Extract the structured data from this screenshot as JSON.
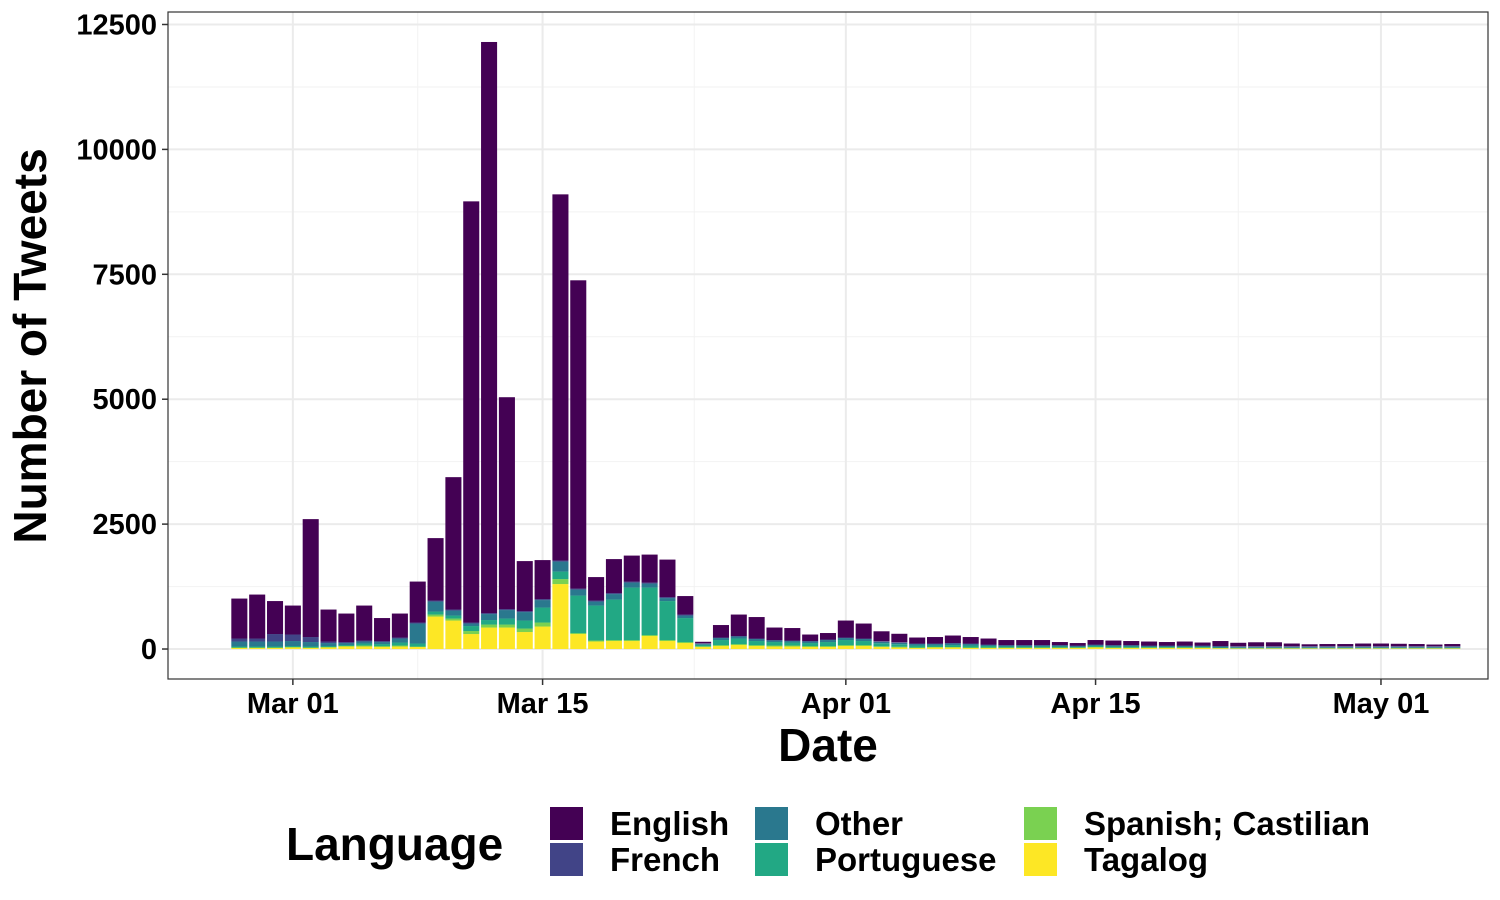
{
  "chart_data": {
    "type": "bar",
    "stacked": true,
    "title": "",
    "xlabel": "Date",
    "ylabel": "Number of Tweets",
    "ylim": [
      -600,
      12750
    ],
    "y_ticks": [
      0,
      2500,
      5000,
      7500,
      10000,
      12500
    ],
    "x_range": [
      "2020-02-23",
      "2020-05-07"
    ],
    "x_ticks": [
      {
        "date": "2020-03-01",
        "label": "Mar 01"
      },
      {
        "date": "2020-03-15",
        "label": "Mar 15"
      },
      {
        "date": "2020-04-01",
        "label": "Apr 01"
      },
      {
        "date": "2020-04-15",
        "label": "Apr 15"
      },
      {
        "date": "2020-05-01",
        "label": "May 01"
      }
    ],
    "grid": true,
    "legend": {
      "title": "Language",
      "position": "bottom"
    },
    "categories": [
      "2020-02-27",
      "2020-02-28",
      "2020-02-29",
      "2020-03-01",
      "2020-03-02",
      "2020-03-03",
      "2020-03-04",
      "2020-03-05",
      "2020-03-06",
      "2020-03-07",
      "2020-03-08",
      "2020-03-09",
      "2020-03-10",
      "2020-03-11",
      "2020-03-12",
      "2020-03-13",
      "2020-03-14",
      "2020-03-15",
      "2020-03-16",
      "2020-03-17",
      "2020-03-18",
      "2020-03-19",
      "2020-03-20",
      "2020-03-21",
      "2020-03-22",
      "2020-03-23",
      "2020-03-24",
      "2020-03-25",
      "2020-03-26",
      "2020-03-27",
      "2020-03-28",
      "2020-03-29",
      "2020-03-30",
      "2020-03-31",
      "2020-04-01",
      "2020-04-02",
      "2020-04-03",
      "2020-04-04",
      "2020-04-05",
      "2020-04-06",
      "2020-04-07",
      "2020-04-08",
      "2020-04-09",
      "2020-04-10",
      "2020-04-11",
      "2020-04-12",
      "2020-04-13",
      "2020-04-14",
      "2020-04-15",
      "2020-04-16",
      "2020-04-17",
      "2020-04-18",
      "2020-04-19",
      "2020-04-20",
      "2020-04-21",
      "2020-04-22",
      "2020-04-23",
      "2020-04-24",
      "2020-04-25",
      "2020-04-26",
      "2020-04-27",
      "2020-04-28",
      "2020-04-29",
      "2020-04-30",
      "2020-05-01",
      "2020-05-02",
      "2020-05-03",
      "2020-05-04",
      "2020-05-05"
    ],
    "series": [
      {
        "name": "Tagalog",
        "color": "#FDE725",
        "values": [
          20,
          20,
          20,
          30,
          20,
          30,
          50,
          50,
          40,
          50,
          40,
          650,
          570,
          300,
          430,
          430,
          340,
          450,
          1300,
          300,
          150,
          160,
          160,
          260,
          160,
          120,
          40,
          60,
          80,
          60,
          50,
          50,
          40,
          40,
          60,
          60,
          40,
          30,
          20,
          30,
          30,
          20,
          20,
          20,
          20,
          20,
          20,
          20,
          30,
          20,
          20,
          20,
          20,
          20,
          20,
          15,
          10,
          10,
          10,
          10,
          10,
          10,
          10,
          10,
          10,
          10,
          10,
          10,
          10
        ]
      },
      {
        "name": "Spanish; Castilian",
        "color": "#7AD151",
        "values": [
          10,
          10,
          10,
          10,
          10,
          10,
          10,
          20,
          20,
          20,
          10,
          40,
          40,
          60,
          60,
          60,
          70,
          80,
          100,
          20,
          20,
          20,
          20,
          20,
          20,
          20,
          15,
          20,
          20,
          20,
          20,
          20,
          20,
          20,
          20,
          20,
          15,
          15,
          10,
          10,
          10,
          10,
          10,
          10,
          10,
          10,
          10,
          10,
          10,
          10,
          10,
          10,
          10,
          10,
          10,
          5,
          5,
          5,
          5,
          5,
          5,
          5,
          5,
          5,
          5,
          5,
          5,
          5,
          5
        ]
      },
      {
        "name": "Portuguese",
        "color": "#22A884",
        "values": [
          20,
          20,
          20,
          20,
          20,
          20,
          20,
          40,
          40,
          60,
          60,
          60,
          60,
          100,
          90,
          120,
          160,
          300,
          150,
          750,
          700,
          810,
          1050,
          950,
          780,
          480,
          30,
          100,
          110,
          80,
          70,
          60,
          60,
          80,
          100,
          80,
          60,
          50,
          40,
          30,
          40,
          40,
          30,
          20,
          20,
          20,
          20,
          10,
          20,
          20,
          20,
          10,
          10,
          10,
          10,
          10,
          10,
          10,
          10,
          10,
          10,
          10,
          10,
          10,
          10,
          10,
          10,
          10,
          10
        ]
      },
      {
        "name": "Other",
        "color": "#2A788E",
        "values": [
          100,
          100,
          100,
          100,
          90,
          60,
          40,
          40,
          40,
          80,
          400,
          200,
          100,
          50,
          120,
          170,
          170,
          150,
          200,
          120,
          80,
          110,
          100,
          80,
          60,
          50,
          20,
          40,
          40,
          40,
          30,
          30,
          30,
          40,
          40,
          40,
          30,
          30,
          30,
          30,
          30,
          30,
          20,
          20,
          20,
          20,
          20,
          20,
          20,
          20,
          20,
          20,
          20,
          20,
          20,
          20,
          20,
          20,
          20,
          20,
          20,
          20,
          20,
          20,
          20,
          20,
          20,
          20,
          20
        ]
      },
      {
        "name": "French",
        "color": "#414487",
        "values": [
          60,
          60,
          150,
          130,
          100,
          30,
          20,
          20,
          20,
          20,
          20,
          20,
          20,
          20,
          20,
          20,
          20,
          20,
          20,
          20,
          20,
          20,
          20,
          20,
          20,
          20,
          10,
          10,
          10,
          10,
          10,
          10,
          10,
          10,
          10,
          10,
          10,
          10,
          10,
          10,
          10,
          10,
          10,
          10,
          10,
          10,
          10,
          10,
          10,
          10,
          10,
          10,
          10,
          10,
          10,
          10,
          10,
          10,
          10,
          10,
          10,
          10,
          10,
          10,
          10,
          10,
          10,
          10,
          10
        ]
      },
      {
        "name": "English",
        "color": "#440154",
        "values": [
          800,
          880,
          660,
          580,
          2360,
          640,
          570,
          700,
          460,
          480,
          820,
          1250,
          2650,
          8430,
          11430,
          4240,
          1000,
          780,
          7330,
          6170,
          470,
          680,
          520,
          560,
          750,
          370,
          30,
          250,
          430,
          430,
          250,
          250,
          130,
          130,
          340,
          300,
          200,
          170,
          120,
          130,
          150,
          130,
          120,
          100,
          100,
          100,
          60,
          50,
          90,
          90,
          80,
          80,
          70,
          80,
          60,
          100,
          70,
          80,
          80,
          55,
          40,
          45,
          45,
          55,
          55,
          50,
          45,
          35,
          45
        ]
      }
    ]
  }
}
